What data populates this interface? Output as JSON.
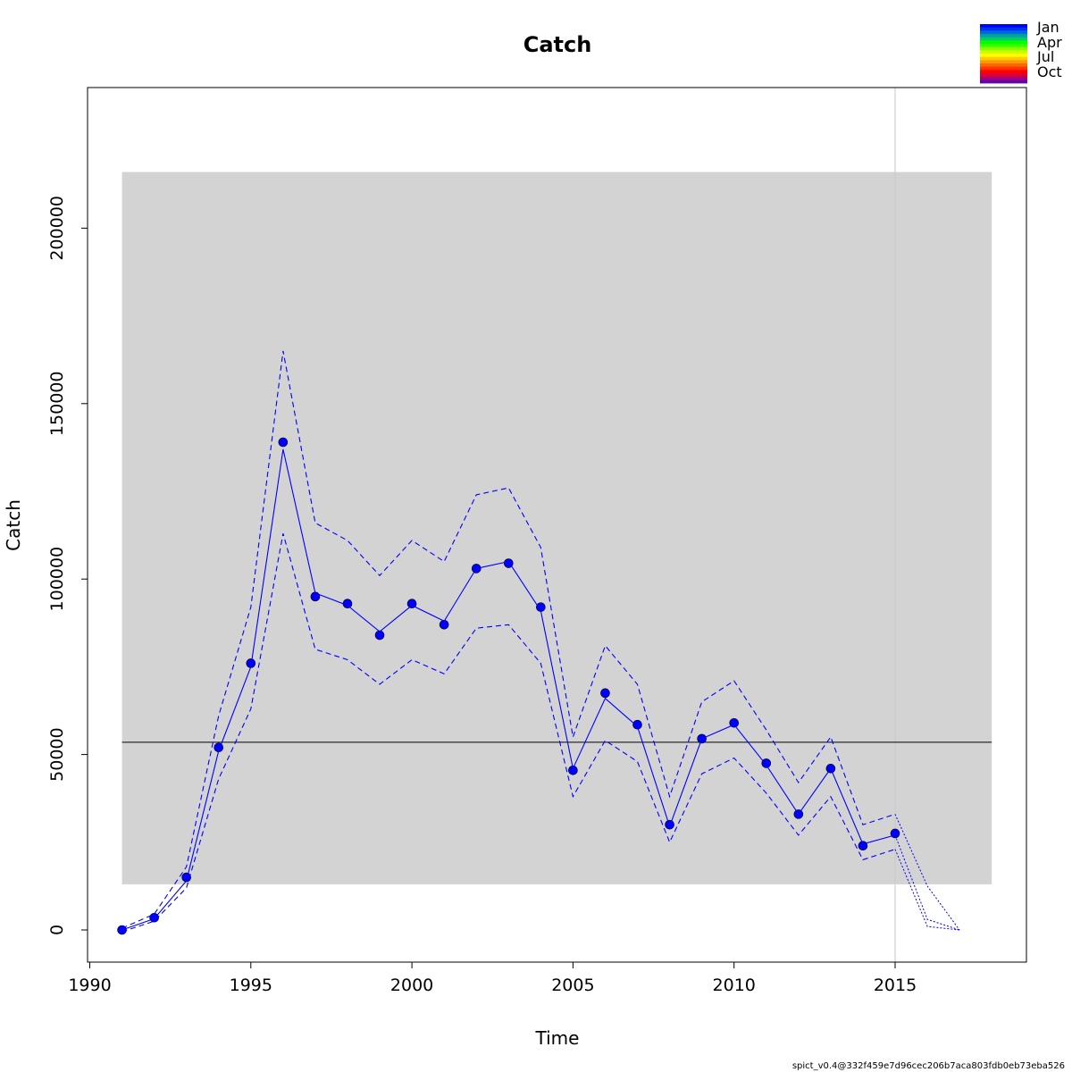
{
  "chart_data": {
    "type": "line",
    "title": "Catch",
    "xlabel": "Time",
    "ylabel": "Catch",
    "xlim": [
      1990,
      2019
    ],
    "ylim": [
      -10000,
      240000
    ],
    "x_ticks": [
      1990,
      1995,
      2000,
      2005,
      2010,
      2015
    ],
    "x_tick_labels": [
      "1990",
      "1995",
      "2000",
      "2005",
      "2010",
      "2015"
    ],
    "y_ticks": [
      0,
      50000,
      100000,
      150000,
      200000
    ],
    "y_tick_labels": [
      "0",
      "50000",
      "100000",
      "150000",
      "200000"
    ],
    "grid": false,
    "legend_position": "top-right",
    "legend_labels": [
      "Jan",
      "Apr",
      "Jul",
      "Oct"
    ],
    "legend_colors": [
      "#0000ff",
      "#0033ee",
      "#0066dd",
      "#00a0a0",
      "#00cc66",
      "#00ff00",
      "#33ff00",
      "#88ff00",
      "#ccff00",
      "#ffff00",
      "#ffcc00",
      "#ff9900",
      "#ff6600",
      "#ff3300",
      "#ff0000",
      "#dd0033",
      "#aa0077",
      "#6600aa"
    ],
    "band": {
      "x0": 1991,
      "x1": 2018,
      "y0": 13000,
      "y1": 216000,
      "color": "#d3d3d3"
    },
    "reference_line": {
      "y": 53500,
      "x0": 1991,
      "x1": 2018,
      "color": "#000000"
    },
    "vertical_line": {
      "x": 2015,
      "color": "#c8c8c8"
    },
    "series": [
      {
        "type": "points",
        "color": "#0000ff",
        "x": [
          1991,
          1992,
          1993,
          1994,
          1995,
          1996,
          1997,
          1998,
          1999,
          2000,
          2001,
          2002,
          2003,
          2004,
          2005,
          2006,
          2007,
          2008,
          2009,
          2010,
          2011,
          2012,
          2013,
          2014,
          2015
        ],
        "y": [
          0,
          3500,
          15000,
          52000,
          76000,
          139000,
          95000,
          93000,
          84000,
          93000,
          87000,
          103000,
          104500,
          92000,
          45500,
          67500,
          58500,
          30000,
          54500,
          59000,
          47500,
          33000,
          46000,
          24000,
          27500
        ]
      },
      {
        "type": "line",
        "color": "#0000ff",
        "x": [
          1991,
          1992,
          1993,
          1994,
          1995,
          1996,
          1997,
          1998,
          1999,
          2000,
          2001,
          2002,
          2003,
          2004,
          2005,
          2006,
          2007,
          2008,
          2009,
          2010,
          2011,
          2012,
          2013,
          2014,
          2015
        ],
        "y": [
          0,
          3200,
          14000,
          51000,
          75000,
          137000,
          96000,
          92500,
          85000,
          92500,
          88000,
          103000,
          105000,
          91000,
          46000,
          66000,
          58000,
          29500,
          54500,
          58500,
          47000,
          33000,
          46000,
          24500,
          27000
        ]
      },
      {
        "type": "dashed",
        "color": "#0000ff",
        "x": [
          1991,
          1992,
          1993,
          1994,
          1995,
          1996,
          1997,
          1998,
          1999,
          2000,
          2001,
          2002,
          2003,
          2004,
          2005,
          2006,
          2007,
          2008,
          2009,
          2010,
          2011,
          2012,
          2013,
          2014,
          2015
        ],
        "y": [
          500,
          4500,
          18000,
          61000,
          92000,
          165000,
          116000,
          111000,
          101000,
          111000,
          105000,
          124000,
          126000,
          109000,
          55000,
          81000,
          70000,
          38000,
          65000,
          71000,
          57000,
          42000,
          55000,
          30000,
          33000
        ]
      },
      {
        "type": "dashed",
        "color": "#0000ff",
        "x": [
          1991,
          1992,
          1993,
          1994,
          1995,
          1996,
          1997,
          1998,
          1999,
          2000,
          2001,
          2002,
          2003,
          2004,
          2005,
          2006,
          2007,
          2008,
          2009,
          2010,
          2011,
          2012,
          2013,
          2014,
          2015
        ],
        "y": [
          -500,
          2500,
          12000,
          43000,
          63000,
          113000,
          80000,
          77000,
          70000,
          77000,
          73000,
          86000,
          87000,
          76000,
          38000,
          54000,
          48000,
          25000,
          44500,
          49000,
          39000,
          27000,
          38000,
          20000,
          23000
        ]
      },
      {
        "type": "dotted",
        "color": "#0000ff",
        "x": [
          2015,
          2016,
          2017
        ],
        "y": [
          27000,
          3000,
          0
        ]
      },
      {
        "type": "dotted",
        "color": "#0000ff",
        "x": [
          2015,
          2016,
          2017
        ],
        "y": [
          33000,
          12500,
          0
        ]
      },
      {
        "type": "dotted",
        "color": "#0000ff",
        "x": [
          2015,
          2016,
          2017
        ],
        "y": [
          23000,
          1000,
          0
        ]
      }
    ]
  },
  "footer": {
    "version_text": "spict_v0.4@332f459e7d96cec206b7aca803fdb0eb73eba526"
  }
}
